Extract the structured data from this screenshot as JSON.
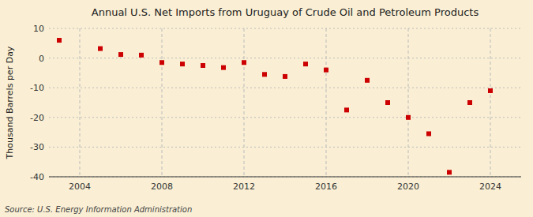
{
  "chart_data": {
    "type": "scatter",
    "title": "Annual U.S. Net Imports from Uruguay of Crude Oil and Petroleum Products",
    "ylabel": "Thousand Barrels per Day",
    "annotations": [
      "Source: U.S. Energy Information Administration"
    ],
    "x": [
      2003,
      2005,
      2006,
      2007,
      2008,
      2009,
      2010,
      2011,
      2012,
      2013,
      2014,
      2015,
      2016,
      2017,
      2018,
      2019,
      2020,
      2021,
      2022,
      2023,
      2024
    ],
    "values": [
      6.0,
      3.2,
      1.2,
      1.0,
      -1.5,
      -2.0,
      -2.5,
      -3.2,
      -1.5,
      -5.5,
      -6.2,
      -2.0,
      -4.0,
      -17.5,
      -7.5,
      -15.0,
      -20.0,
      -25.5,
      -38.5,
      -15.0,
      -11.0
    ],
    "color": "#cc0000",
    "marker": "square",
    "xlim": [
      2002.5,
      2025.5
    ],
    "ylim": [
      -40,
      10
    ],
    "xticks": [
      2004,
      2008,
      2012,
      2016,
      2020,
      2024
    ],
    "yticks": [
      -40,
      -30,
      -20,
      -10,
      0,
      10
    ],
    "grid": true
  }
}
